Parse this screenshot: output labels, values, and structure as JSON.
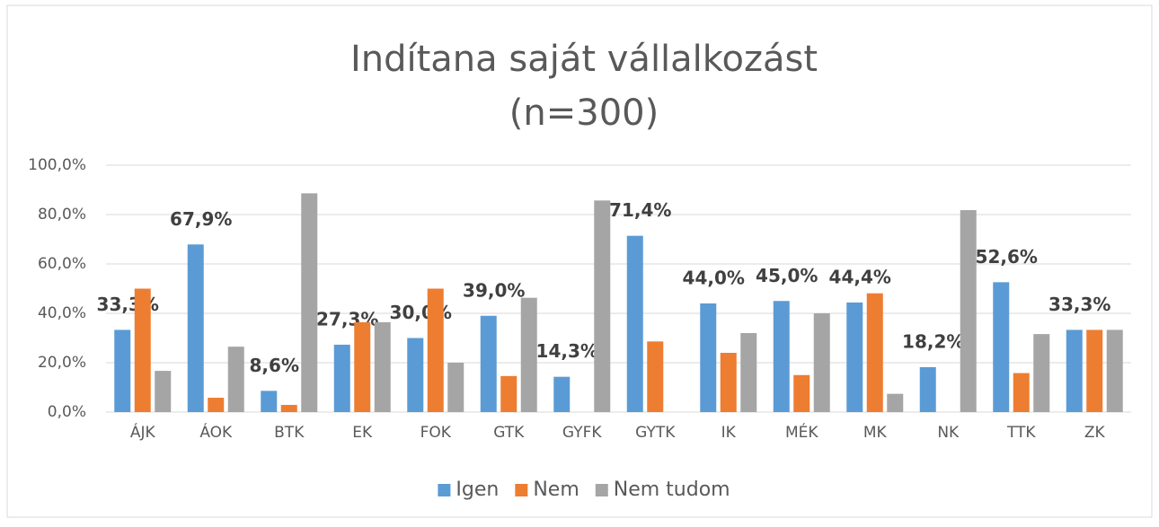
{
  "chart_data": {
    "type": "bar",
    "title": "Indítana saját vállalkozást",
    "subtitle": "(n=300)",
    "categories": [
      "ÁJK",
      "ÁOK",
      "BTK",
      "EK",
      "FOK",
      "GTK",
      "GYFK",
      "GYTK",
      "IK",
      "MÉK",
      "MK",
      "NK",
      "TTK",
      "ZK"
    ],
    "series": [
      {
        "name": "Igen",
        "color": "#5b9bd5",
        "values": [
          33.3,
          67.9,
          8.6,
          27.3,
          30.0,
          39.0,
          14.3,
          71.4,
          44.0,
          45.0,
          44.4,
          18.2,
          52.6,
          33.3
        ],
        "value_labels": [
          "33,3%",
          "67,9%",
          "8,6%",
          "27,3%",
          "30,0%",
          "39,0%",
          "14,3%",
          "71,4%",
          "44,0%",
          "45,0%",
          "44,4%",
          "18,2%",
          "52,6%",
          "33,3%"
        ]
      },
      {
        "name": "Nem",
        "color": "#ed7d31",
        "values": [
          50.0,
          5.8,
          2.9,
          36.4,
          50.0,
          14.6,
          0,
          28.6,
          24.0,
          15.0,
          48.1,
          0,
          15.8,
          33.3
        ]
      },
      {
        "name": "Nem tudom",
        "color": "#a5a5a5",
        "values": [
          16.7,
          26.5,
          88.6,
          36.4,
          20.0,
          46.3,
          85.7,
          0,
          32.0,
          40.0,
          7.4,
          81.8,
          31.6,
          33.3
        ]
      }
    ],
    "ylim": [
      0,
      100
    ],
    "yticks": [
      {
        "value": 0,
        "label": "0,0%"
      },
      {
        "value": 20,
        "label": "20,0%"
      },
      {
        "value": 40,
        "label": "40,0%"
      },
      {
        "value": 60,
        "label": "60,0%"
      },
      {
        "value": 80,
        "label": "80,0%"
      },
      {
        "value": 100,
        "label": "100,0%"
      }
    ],
    "grid": true,
    "legend": "bottom"
  }
}
